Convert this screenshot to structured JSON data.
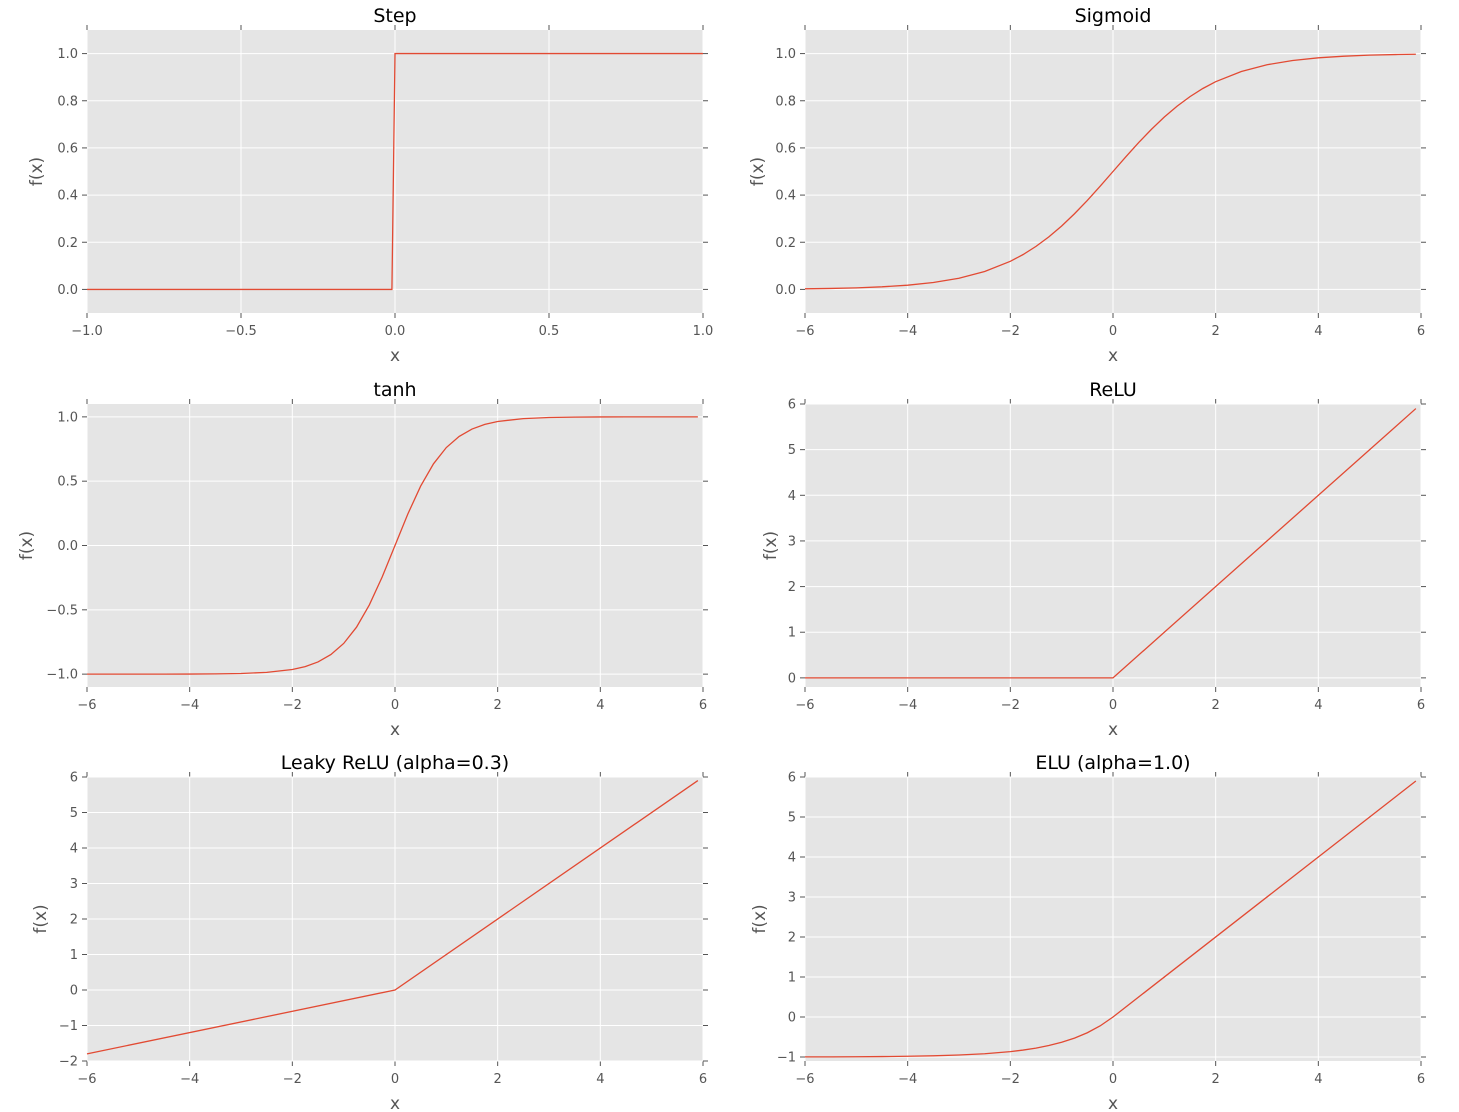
{
  "style": {
    "background": "#ffffff",
    "plot_background": "#e5e5e5",
    "grid": "#ffffff",
    "line": "#e24a33",
    "tick_text": "#555555"
  },
  "chart_data": [
    {
      "type": "line",
      "title": "Step",
      "xlabel": "x",
      "ylabel": "f(x)",
      "xlim": [
        -1.0,
        1.0
      ],
      "ylim": [
        -0.1,
        1.1
      ],
      "grid": true,
      "xticks": [
        -1.0,
        -0.5,
        0.0,
        0.5,
        1.0
      ],
      "xtick_labels": [
        "−1.0",
        "−0.5",
        "0.0",
        "0.5",
        "1.0"
      ],
      "yticks": [
        0.0,
        0.2,
        0.4,
        0.6,
        0.8,
        1.0
      ],
      "ytick_labels": [
        "0.0",
        "0.2",
        "0.4",
        "0.6",
        "0.8",
        "1.0"
      ],
      "series": [
        {
          "x": [
            -1.0,
            -0.01,
            0.0,
            1.0
          ],
          "y": [
            0,
            0,
            1,
            1
          ]
        }
      ]
    },
    {
      "type": "line",
      "title": "Sigmoid",
      "xlabel": "x",
      "ylabel": "f(x)",
      "xlim": [
        -6,
        6
      ],
      "ylim": [
        -0.1,
        1.1
      ],
      "grid": true,
      "xticks": [
        -6,
        -4,
        -2,
        0,
        2,
        4,
        6
      ],
      "xtick_labels": [
        "−6",
        "−4",
        "−2",
        "0",
        "2",
        "4",
        "6"
      ],
      "yticks": [
        0.0,
        0.2,
        0.4,
        0.6,
        0.8,
        1.0
      ],
      "ytick_labels": [
        "0.0",
        "0.2",
        "0.4",
        "0.6",
        "0.8",
        "1.0"
      ],
      "series": [
        {
          "x": [
            -6,
            -5.5,
            -5,
            -4.5,
            -4,
            -3.5,
            -3,
            -2.5,
            -2,
            -1.75,
            -1.5,
            -1.25,
            -1,
            -0.75,
            -0.5,
            -0.25,
            0,
            0.25,
            0.5,
            0.75,
            1,
            1.25,
            1.5,
            1.75,
            2,
            2.5,
            3,
            3.5,
            4,
            4.5,
            5,
            5.5,
            5.9
          ],
          "y": [
            0.0025,
            0.0041,
            0.0067,
            0.011,
            0.018,
            0.0293,
            0.0474,
            0.0759,
            0.1192,
            0.148,
            0.1824,
            0.2227,
            0.2689,
            0.3208,
            0.3775,
            0.4378,
            0.5,
            0.5622,
            0.6225,
            0.6792,
            0.7311,
            0.7773,
            0.8176,
            0.852,
            0.8808,
            0.9241,
            0.9526,
            0.9707,
            0.982,
            0.989,
            0.9933,
            0.9959,
            0.9973
          ]
        }
      ]
    },
    {
      "type": "line",
      "title": "tanh",
      "xlabel": "x",
      "ylabel": "f(x)",
      "xlim": [
        -6,
        6
      ],
      "ylim": [
        -1.1,
        1.1
      ],
      "grid": true,
      "xticks": [
        -6,
        -4,
        -2,
        0,
        2,
        4,
        6
      ],
      "xtick_labels": [
        "−6",
        "−4",
        "−2",
        "0",
        "2",
        "4",
        "6"
      ],
      "yticks": [
        -1.0,
        -0.5,
        0.0,
        0.5,
        1.0
      ],
      "ytick_labels": [
        "−1.0",
        "−0.5",
        "0.0",
        "0.5",
        "1.0"
      ],
      "series": [
        {
          "x": [
            -6,
            -5.5,
            -5,
            -4.5,
            -4,
            -3.5,
            -3,
            -2.5,
            -2,
            -1.75,
            -1.5,
            -1.25,
            -1,
            -0.75,
            -0.5,
            -0.25,
            0,
            0.25,
            0.5,
            0.75,
            1,
            1.25,
            1.5,
            1.75,
            2,
            2.5,
            3,
            3.5,
            4,
            4.5,
            5,
            5.5,
            5.9
          ],
          "y": [
            -1.0,
            -1.0,
            -0.9999,
            -0.9998,
            -0.9993,
            -0.9982,
            -0.9951,
            -0.9866,
            -0.964,
            -0.9414,
            -0.9051,
            -0.8483,
            -0.7616,
            -0.6351,
            -0.4621,
            -0.2449,
            0,
            0.2449,
            0.4621,
            0.6351,
            0.7616,
            0.8483,
            0.9051,
            0.9414,
            0.964,
            0.9866,
            0.9951,
            0.9982,
            0.9993,
            0.9998,
            0.9999,
            1.0,
            1.0
          ]
        }
      ]
    },
    {
      "type": "line",
      "title": "ReLU",
      "xlabel": "x",
      "ylabel": "f(x)",
      "xlim": [
        -6,
        6
      ],
      "ylim": [
        -0.2,
        6
      ],
      "grid": true,
      "xticks": [
        -6,
        -4,
        -2,
        0,
        2,
        4,
        6
      ],
      "xtick_labels": [
        "−6",
        "−4",
        "−2",
        "0",
        "2",
        "4",
        "6"
      ],
      "yticks": [
        0,
        1,
        2,
        3,
        4,
        5,
        6
      ],
      "ytick_labels": [
        "0",
        "1",
        "2",
        "3",
        "4",
        "5",
        "6"
      ],
      "series": [
        {
          "x": [
            -6,
            0,
            5.9
          ],
          "y": [
            0,
            0,
            5.9
          ]
        }
      ]
    },
    {
      "type": "line",
      "title": "Leaky ReLU (alpha=0.3)",
      "xlabel": "x",
      "ylabel": "f(x)",
      "xlim": [
        -6,
        6
      ],
      "ylim": [
        -2,
        6
      ],
      "grid": true,
      "xticks": [
        -6,
        -4,
        -2,
        0,
        2,
        4,
        6
      ],
      "xtick_labels": [
        "−6",
        "−4",
        "−2",
        "0",
        "2",
        "4",
        "6"
      ],
      "yticks": [
        -2,
        -1,
        0,
        1,
        2,
        3,
        4,
        5,
        6
      ],
      "ytick_labels": [
        "−2",
        "−1",
        "0",
        "1",
        "2",
        "3",
        "4",
        "5",
        "6"
      ],
      "series": [
        {
          "x": [
            -6,
            0,
            5.9
          ],
          "y": [
            -1.8,
            0,
            5.9
          ]
        }
      ]
    },
    {
      "type": "line",
      "title": "ELU (alpha=1.0)",
      "xlabel": "x",
      "ylabel": "f(x)",
      "xlim": [
        -6,
        6
      ],
      "ylim": [
        -1.1,
        6
      ],
      "grid": true,
      "xticks": [
        -6,
        -4,
        -2,
        0,
        2,
        4,
        6
      ],
      "xtick_labels": [
        "−6",
        "−4",
        "−2",
        "0",
        "2",
        "4",
        "6"
      ],
      "yticks": [
        -1,
        0,
        1,
        2,
        3,
        4,
        5,
        6
      ],
      "ytick_labels": [
        "−1",
        "0",
        "1",
        "2",
        "3",
        "4",
        "5",
        "6"
      ],
      "series": [
        {
          "x": [
            -6,
            -5.5,
            -5,
            -4.5,
            -4,
            -3.5,
            -3,
            -2.5,
            -2,
            -1.75,
            -1.5,
            -1.25,
            -1,
            -0.75,
            -0.5,
            -0.25,
            0,
            5.9
          ],
          "y": [
            -0.9975,
            -0.9959,
            -0.9933,
            -0.9889,
            -0.9817,
            -0.9698,
            -0.9502,
            -0.9179,
            -0.8647,
            -0.8262,
            -0.7769,
            -0.7135,
            -0.6321,
            -0.5276,
            -0.3935,
            -0.2212,
            0,
            5.9
          ]
        }
      ]
    }
  ]
}
